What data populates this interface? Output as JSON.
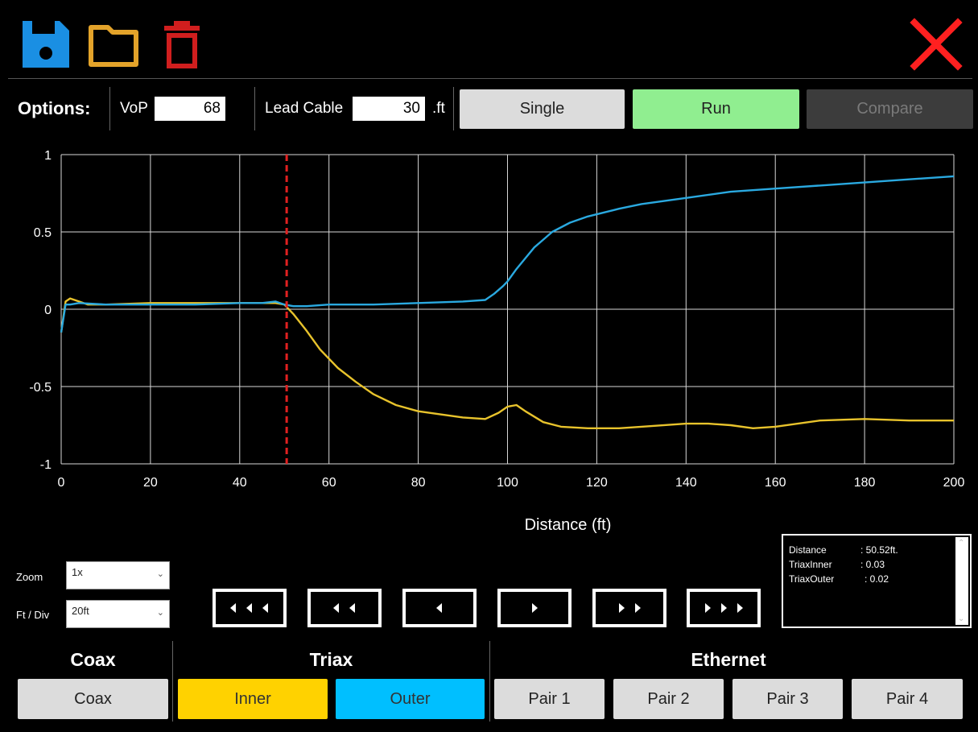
{
  "colors": {
    "save": "#1a8fe3",
    "folder": "#e3a32a",
    "delete": "#d01e1e",
    "close": "#ff2020",
    "trace_inner": "#e8c32c",
    "trace_outer": "#2aa9e0",
    "cursor": "#e02020"
  },
  "toolbar": {
    "icons": [
      "save-icon",
      "folder-icon",
      "trash-icon",
      "close-icon"
    ]
  },
  "options": {
    "title": "Options:",
    "vop_label": "VoP",
    "vop_value": "68",
    "lead_cable_label": "Lead Cable",
    "lead_cable_value": "30",
    "lead_cable_unit": ".ft",
    "single_label": "Single",
    "run_label": "Run",
    "compare_label": "Compare"
  },
  "chart_data": {
    "type": "line",
    "xlabel": "Distance (ft)",
    "ylabel": "",
    "xlim": [
      0,
      200
    ],
    "ylim": [
      -1,
      1
    ],
    "x_ticks": [
      "0",
      "20",
      "40",
      "60",
      "80",
      "100",
      "120",
      "140",
      "160",
      "180",
      "200"
    ],
    "y_ticks": [
      "1",
      "0.5",
      "0",
      "-0.5",
      "-1"
    ],
    "grid": true,
    "cursor_x": 50.52,
    "series": [
      {
        "color": "#e8c32c",
        "x": [
          0,
          1,
          2,
          4,
          6,
          10,
          20,
          30,
          40,
          45,
          48,
          50,
          52,
          55,
          58,
          62,
          66,
          70,
          75,
          80,
          85,
          90,
          95,
          98,
          100,
          102,
          104,
          108,
          112,
          118,
          125,
          130,
          140,
          145,
          150,
          155,
          160,
          170,
          180,
          190,
          200
        ],
        "y": [
          -0.15,
          0.05,
          0.07,
          0.05,
          0.03,
          0.03,
          0.04,
          0.04,
          0.04,
          0.04,
          0.04,
          0.03,
          -0.03,
          -0.14,
          -0.26,
          -0.38,
          -0.47,
          -0.55,
          -0.62,
          -0.66,
          -0.68,
          -0.7,
          -0.71,
          -0.67,
          -0.63,
          -0.62,
          -0.66,
          -0.73,
          -0.76,
          -0.77,
          -0.77,
          -0.76,
          -0.74,
          -0.74,
          -0.75,
          -0.77,
          -0.76,
          -0.72,
          -0.71,
          -0.72,
          -0.72
        ]
      },
      {
        "color": "#2aa9e0",
        "x": [
          0,
          1,
          2,
          4,
          10,
          20,
          30,
          40,
          45,
          48,
          50,
          52,
          55,
          60,
          70,
          80,
          90,
          95,
          97,
          99,
          100,
          102,
          104,
          106,
          108,
          110,
          114,
          118,
          125,
          130,
          140,
          150,
          160,
          170,
          180,
          190,
          200
        ],
        "y": [
          -0.15,
          0.03,
          0.03,
          0.04,
          0.03,
          0.03,
          0.03,
          0.04,
          0.04,
          0.05,
          0.03,
          0.02,
          0.02,
          0.03,
          0.03,
          0.04,
          0.05,
          0.06,
          0.1,
          0.15,
          0.18,
          0.26,
          0.33,
          0.4,
          0.45,
          0.5,
          0.56,
          0.6,
          0.65,
          0.68,
          0.72,
          0.76,
          0.78,
          0.8,
          0.82,
          0.84,
          0.86
        ]
      }
    ]
  },
  "controls": {
    "zoom_label": "Zoom",
    "zoom_value": "1x",
    "ftdiv_label": "Ft / Div",
    "ftdiv_value": "20ft"
  },
  "nav": {
    "buttons": [
      {
        "name": "nav-left-triple-button",
        "arrows": 3,
        "dir": "left"
      },
      {
        "name": "nav-left-double-button",
        "arrows": 2,
        "dir": "left"
      },
      {
        "name": "nav-left-single-button",
        "arrows": 1,
        "dir": "left"
      },
      {
        "name": "nav-right-single-button",
        "arrows": 1,
        "dir": "right"
      },
      {
        "name": "nav-right-double-button",
        "arrows": 2,
        "dir": "right"
      },
      {
        "name": "nav-right-triple-button",
        "arrows": 3,
        "dir": "right"
      }
    ]
  },
  "readout": {
    "distance_label": "Distance",
    "distance_value": ": 50.52ft.",
    "inner_label": "TriaxInner",
    "inner_value": ": 0.03",
    "outer_label": "TriaxOuter",
    "outer_value": ": 0.02"
  },
  "bottom": {
    "coax_title": "Coax",
    "coax_button": "Coax",
    "triax_title": "Triax",
    "inner_button": "Inner",
    "outer_button": "Outer",
    "ethernet_title": "Ethernet",
    "pair1": "Pair 1",
    "pair2": "Pair 2",
    "pair3": "Pair 3",
    "pair4": "Pair 4"
  }
}
